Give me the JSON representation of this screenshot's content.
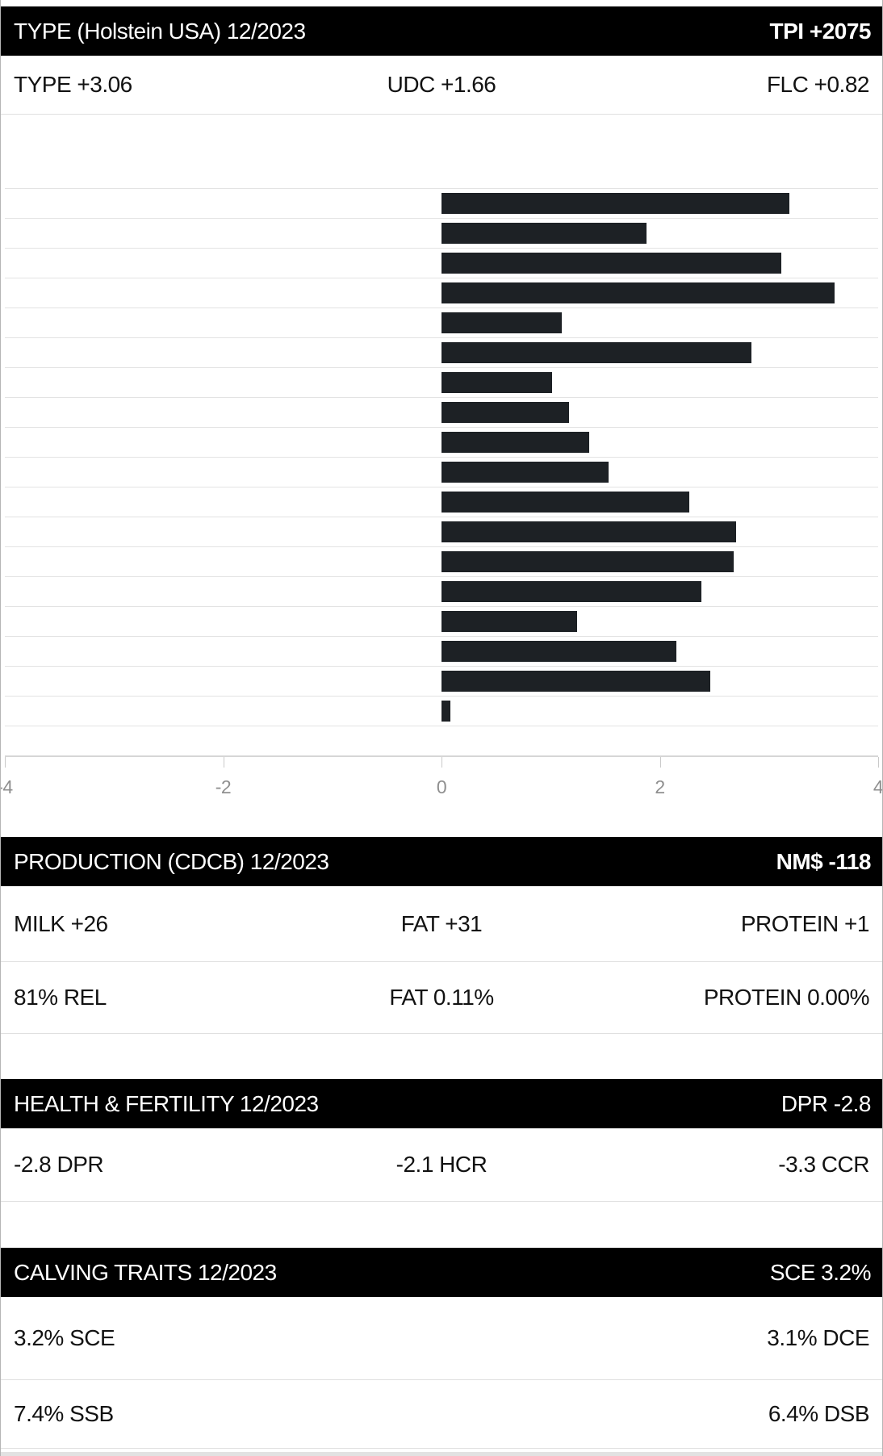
{
  "sections": {
    "type": {
      "header": {
        "title": "TYPE (Holstein USA) 12/2023",
        "value": "TPI +2075"
      },
      "summary": {
        "left": "TYPE +3.06",
        "center": "UDC +1.66",
        "right": "FLC +0.82"
      }
    },
    "production": {
      "header": {
        "title": "PRODUCTION (CDCB) 12/2023",
        "value": "NM$ -118"
      },
      "row1": {
        "left": "MILK +26",
        "center": "FAT +31",
        "right": "PROTEIN +1"
      },
      "row2": {
        "left": "81% REL",
        "center": "FAT 0.11%",
        "right": "PROTEIN 0.00%"
      }
    },
    "health": {
      "header": {
        "title": "HEALTH & FERTILITY 12/2023",
        "value": "DPR -2.8"
      },
      "row1": {
        "left": "-2.8 DPR",
        "center": "-2.1 HCR",
        "right": "-3.3 CCR"
      }
    },
    "calving": {
      "header": {
        "title": "CALVING TRAITS 12/2023",
        "value": "SCE 3.2%"
      },
      "row1": {
        "left": "3.2% SCE",
        "right": "3.1% DCE"
      },
      "row2": {
        "left": "7.4% SSB",
        "right": "6.4% DSB"
      }
    }
  },
  "chart_data": {
    "type": "bar",
    "orientation": "horizontal",
    "title": "",
    "xlabel": "",
    "ylabel": "",
    "xlim": [
      -4,
      4
    ],
    "x_ticks": [
      "-4",
      "-2",
      "0",
      "2",
      "4"
    ],
    "grid": true,
    "rows_total": 19,
    "category_labels_visible": false,
    "values": [
      3.19,
      1.88,
      3.11,
      3.6,
      1.1,
      2.84,
      1.01,
      1.17,
      1.35,
      1.53,
      2.27,
      2.7,
      2.68,
      2.38,
      1.24,
      2.15,
      2.46,
      0.08
    ]
  },
  "colors": {
    "header_bg": "#000000",
    "header_text": "#ffffff",
    "bar": "#1d2125",
    "gridline": "#e3e3e3",
    "axis_label": "#8f8f8f",
    "body_text": "#121212"
  }
}
